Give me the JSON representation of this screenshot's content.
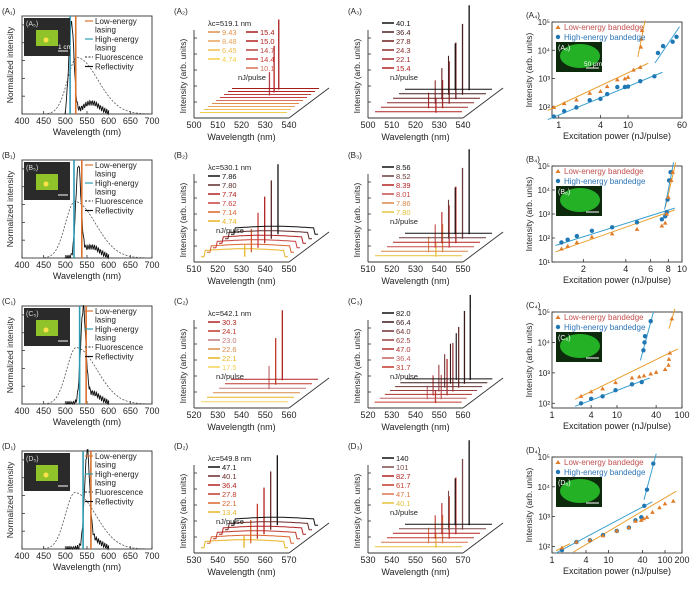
{
  "figure": {
    "rows": [
      "A",
      "B",
      "C",
      "D"
    ],
    "colors": {
      "low_energy": "#d9732e",
      "high_energy": "#2f9cb0",
      "fluorescence": "#555555",
      "reflectivity": "#111111",
      "scatter_low": "#e07b28",
      "scatter_high": "#1f77b4",
      "fit_low": "#e8a030",
      "fit_high": "#3aa0d0",
      "legend_low_text": "#c0504d",
      "legend_high_text": "#2e75b6",
      "inset_green": "#29c92b"
    }
  },
  "chart_data": [
    {
      "panel": "A1",
      "type": "line",
      "label": "(A₁)",
      "inset_label": "(A₅)",
      "scale_bar": "1 cm",
      "xlabel": "Wavelength (nm)",
      "ylabel": "Normalized intensity",
      "xlim": [
        400,
        700
      ],
      "xticks": [
        400,
        450,
        500,
        550,
        600,
        650,
        700
      ],
      "legend": [
        "Low-energy lasing",
        "High-energy lasing",
        "Fluorescence",
        "Reflectivity"
      ],
      "low_energy_lasing": 524,
      "high_energy_lasing": 511,
      "fluorescence_peak": 527,
      "reflectivity_peak": 514
    },
    {
      "panel": "A2",
      "type": "line",
      "label": "(A₂)",
      "lambda_c": "λc=519.1 nm",
      "xlabel": "Wavelength (nm)",
      "ylabel": "Intensity (arb. units)",
      "xlim": [
        500,
        540
      ],
      "xticks": [
        500,
        510,
        520,
        530,
        540
      ],
      "unit": "nJ/pulse",
      "series": [
        {
          "name": "4.74",
          "color": "#f2cf4a",
          "peak": 0
        },
        {
          "name": "6.45",
          "color": "#efbd50",
          "peak": 0
        },
        {
          "name": "8.48",
          "color": "#e9a35a",
          "peak": 0
        },
        {
          "name": "9.43",
          "color": "#e08f4a",
          "peak": 0
        },
        {
          "name": "10.1",
          "color": "#d86f58",
          "peak": 0
        },
        {
          "name": "14.4",
          "color": "#cc3a3a",
          "peak": 0.3
        },
        {
          "name": "14.7",
          "color": "#b84040",
          "peak": 0.35
        },
        {
          "name": "15.0",
          "color": "#b22222",
          "peak": 0.6
        },
        {
          "name": "15.4",
          "color": "#a51c1c",
          "peak": 1.0
        }
      ]
    },
    {
      "panel": "A3",
      "type": "line",
      "label": "(A₃)",
      "xlabel": "Wavelength (nm)",
      "ylabel": "Intensity (arb. units)",
      "xlim": [
        500,
        540
      ],
      "xticks": [
        500,
        510,
        520,
        530,
        540
      ],
      "unit": "nJ/pulse",
      "series": [
        {
          "name": "15.4",
          "color": "#b22222"
        },
        {
          "name": "22.1",
          "color": "#a3282a"
        },
        {
          "name": "24.3",
          "color": "#8b2e2e"
        },
        {
          "name": "27.8",
          "color": "#6e1e1e"
        },
        {
          "name": "36.4",
          "color": "#4a2020"
        },
        {
          "name": "40.1",
          "color": "#111111"
        }
      ]
    },
    {
      "panel": "A4",
      "type": "scatter",
      "label": "(A₄)",
      "inset_label": "(A₆)",
      "scale_bar": "50 μm",
      "xlabel": "Excitation power (nJ/pulse)",
      "ylabel": "Intensity (arb. units)",
      "xscale": "log",
      "yscale": "log",
      "xlim": [
        0.8,
        60
      ],
      "ylim": [
        40,
        100000
      ],
      "xticks": [
        "1",
        "4",
        "10",
        "60"
      ],
      "yticks": [
        "10²",
        "10³",
        "10⁴",
        "10⁵"
      ],
      "legend": [
        "Low-energy bandedge",
        "High-energy bandedge"
      ],
      "low": {
        "x": [
          0.85,
          1.2,
          1.8,
          2.8,
          4,
          5,
          7,
          9,
          10,
          12,
          15,
          15.3,
          15.6,
          15.9
        ],
        "y": [
          95,
          130,
          175,
          300,
          350,
          520,
          900,
          980,
          1100,
          2000,
          2500,
          13000,
          25000,
          50000
        ]
      },
      "high": {
        "x": [
          0.85,
          1.2,
          1.8,
          2.8,
          4,
          5,
          7,
          9,
          10,
          15,
          24,
          27,
          32,
          44,
          50
        ],
        "y": [
          45,
          70,
          95,
          170,
          190,
          280,
          500,
          500,
          520,
          800,
          1200,
          8000,
          14000,
          20000,
          30000
        ]
      }
    },
    {
      "panel": "B1",
      "type": "line",
      "label": "(B₁)",
      "inset_label": "(B₅)",
      "xlabel": "Wavelength (nm)",
      "ylabel": "Normalized intensity",
      "xlim": [
        400,
        700
      ],
      "xticks": [
        400,
        450,
        500,
        550,
        600,
        650,
        700
      ],
      "legend": [
        "Low-energy lasing",
        "High-energy lasing",
        "Fluorescence",
        "Reflectivity"
      ],
      "low_energy_lasing": 538,
      "high_energy_lasing": 520,
      "fluorescence_peak": 522,
      "reflectivity_peak": 530
    },
    {
      "panel": "B2",
      "type": "line",
      "label": "(B₂)",
      "lambda_c": "λc=530.1 nm",
      "xlabel": "Wavelength (nm)",
      "ylabel": "Intensity (arb. units)",
      "xlim": [
        510,
        550
      ],
      "xticks": [
        510,
        520,
        530,
        540,
        550
      ],
      "unit": "nJ/pulse",
      "series": [
        {
          "name": "4.74",
          "color": "#e6b422"
        },
        {
          "name": "7.14",
          "color": "#d9652b"
        },
        {
          "name": "7.62",
          "color": "#c94040"
        },
        {
          "name": "7.74",
          "color": "#b22222"
        },
        {
          "name": "7.80",
          "color": "#5a2a2a"
        },
        {
          "name": "7.86",
          "color": "#111111"
        }
      ]
    },
    {
      "panel": "B3",
      "type": "line",
      "label": "(B₃)",
      "xlabel": "Wavelength (nm)",
      "ylabel": "Intensity (arb. units)",
      "xlim": [
        510,
        550
      ],
      "xticks": [
        510,
        520,
        530,
        540,
        550
      ],
      "unit": "nJ/pulse",
      "series": [
        {
          "name": "7.80",
          "color": "#e6c23a"
        },
        {
          "name": "7.86",
          "color": "#d9894a"
        },
        {
          "name": "8.01",
          "color": "#c74a4a"
        },
        {
          "name": "8.39",
          "color": "#b22222"
        },
        {
          "name": "8.52",
          "color": "#6a3a3a"
        },
        {
          "name": "8.56",
          "color": "#111111"
        }
      ]
    },
    {
      "panel": "B4",
      "type": "scatter",
      "label": "(B₄)",
      "inset_label": "(B₆)",
      "xlabel": "Excitation power (nJ/pulse)",
      "ylabel": "Intensity (arb. units)",
      "xscale": "log",
      "yscale": "log",
      "xlim": [
        1.2,
        10
      ],
      "ylim": [
        10,
        100000
      ],
      "xticks": [
        "2",
        "4",
        "6",
        "8",
        "10"
      ],
      "yticks": [
        "10¹",
        "10²",
        "10³",
        "10⁴",
        "10⁵"
      ],
      "legend": [
        "Low-energy bandedge",
        "High-energy bandedge"
      ],
      "low": {
        "x": [
          1.4,
          1.55,
          1.8,
          2.3,
          3.2,
          4.8,
          7.2,
          7.6,
          7.8,
          8.0,
          8.4,
          8.6
        ],
        "y": [
          35,
          45,
          65,
          110,
          150,
          230,
          320,
          420,
          1000,
          5000,
          25000,
          55000
        ]
      },
      "high": {
        "x": [
          1.4,
          1.55,
          1.8,
          2.3,
          3.2,
          4.8,
          7.2,
          7.6,
          7.8,
          7.9,
          8.1,
          8.3
        ],
        "y": [
          65,
          85,
          120,
          200,
          280,
          450,
          600,
          800,
          1200,
          4000,
          25000,
          55000
        ]
      }
    },
    {
      "panel": "C1",
      "type": "line",
      "label": "(C₁)",
      "inset_label": "(C₅)",
      "xlabel": "Wavelength (nm)",
      "ylabel": "Normalized intensity",
      "xlim": [
        400,
        700
      ],
      "xticks": [
        400,
        450,
        500,
        550,
        600,
        650,
        700
      ],
      "legend": [
        "Low-energy lasing",
        "High-energy lasing",
        "Fluorescence",
        "Reflectivity"
      ],
      "low_energy_lasing": 548,
      "high_energy_lasing": 533,
      "fluorescence_peak": 525,
      "reflectivity_peak": 541
    },
    {
      "panel": "C2",
      "type": "line",
      "label": "(C₂)",
      "lambda_c": "λc=542.1 nm",
      "xlabel": "Wavelength (nm)",
      "ylabel": "Intensity (arb. units)",
      "xlim": [
        520,
        560
      ],
      "xticks": [
        520,
        530,
        540,
        550,
        560
      ],
      "unit": "nJ/pulse",
      "series": [
        {
          "name": "17.5",
          "color": "#f2d35a"
        },
        {
          "name": "22.1",
          "color": "#e6b422"
        },
        {
          "name": "22.6",
          "color": "#d98a4a"
        },
        {
          "name": "23.0",
          "color": "#c47a7a"
        },
        {
          "name": "24.1",
          "color": "#c0392b"
        },
        {
          "name": "30.3",
          "color": "#b22222"
        }
      ]
    },
    {
      "panel": "C3",
      "type": "line",
      "label": "(C₃)",
      "xlabel": "Wavelength (nm)",
      "ylabel": "Intensity (arb. units)",
      "xlim": [
        520,
        560
      ],
      "xticks": [
        520,
        530,
        540,
        550,
        560
      ],
      "unit": "nJ/pulse",
      "series": [
        {
          "name": "31.7",
          "color": "#c0392b"
        },
        {
          "name": "36.4",
          "color": "#c46060"
        },
        {
          "name": "47.0",
          "color": "#b03030"
        },
        {
          "name": "62.5",
          "color": "#9a4040"
        },
        {
          "name": "64.0",
          "color": "#6e3232"
        },
        {
          "name": "66.4",
          "color": "#3a1a1a"
        },
        {
          "name": "82.0",
          "color": "#111111"
        }
      ]
    },
    {
      "panel": "C4",
      "type": "scatter",
      "label": "(C₄)",
      "inset_label": "(C₆)",
      "xlabel": "Excitation power (nJ/pulse)",
      "ylabel": "Intensity (arb. units)",
      "xscale": "log",
      "yscale": "log",
      "xlim": [
        1,
        100
      ],
      "ylim": [
        70,
        100000
      ],
      "xticks": [
        "1",
        "4",
        "10",
        "40",
        "100"
      ],
      "yticks": [
        "10²",
        "10³",
        "10⁴",
        "10⁵"
      ],
      "legend": [
        "Low-energy bandedge",
        "High-energy bandedge"
      ],
      "low": {
        "x": [
          2.8,
          4,
          6,
          9.5,
          17,
          22,
          26,
          33,
          40,
          55,
          62,
          63,
          65,
          70
        ],
        "y": [
          170,
          240,
          300,
          480,
          680,
          740,
          800,
          920,
          1050,
          1300,
          1800,
          2800,
          4500,
          60000
        ]
      },
      "high": {
        "x": [
          2.8,
          4,
          6,
          9.5,
          17,
          24,
          25.5,
          26.5,
          27,
          33
        ],
        "y": [
          100,
          140,
          170,
          270,
          420,
          500,
          5500,
          10000,
          16000,
          50000
        ]
      }
    },
    {
      "panel": "D1",
      "type": "line",
      "label": "(D₁)",
      "inset_label": "(D₅)",
      "xlabel": "Wavelength (nm)",
      "ylabel": "Normalized intensity",
      "xlim": [
        400,
        700
      ],
      "xticks": [
        400,
        450,
        500,
        550,
        600,
        650,
        700
      ],
      "legend": [
        "Low-energy lasing",
        "High-energy lasing",
        "Fluorescence",
        "Reflectivity"
      ],
      "low_energy_lasing": 559,
      "high_energy_lasing": 541,
      "fluorescence_peak": 522,
      "reflectivity_peak": 550
    },
    {
      "panel": "D2",
      "type": "line",
      "label": "(D₂)",
      "lambda_c": "λc=549.8 nm",
      "xlabel": "Wavelength (nm)",
      "ylabel": "Intensity (arb. units)",
      "xlim": [
        530,
        570
      ],
      "xticks": [
        530,
        540,
        550,
        560,
        570
      ],
      "unit": "nJ/pulse",
      "series": [
        {
          "name": "13.4",
          "color": "#e6b422"
        },
        {
          "name": "22.1",
          "color": "#d9652b"
        },
        {
          "name": "27.8",
          "color": "#c0392b"
        },
        {
          "name": "36.4",
          "color": "#b22222"
        },
        {
          "name": "40.1",
          "color": "#6a2a2a"
        },
        {
          "name": "47.1",
          "color": "#111111"
        }
      ]
    },
    {
      "panel": "D3",
      "type": "line",
      "label": "(D₃)",
      "xlabel": "Wavelength (nm)",
      "ylabel": "Intensity (arb. units)",
      "xlim": [
        530,
        570
      ],
      "xticks": [
        530,
        540,
        550,
        560,
        570
      ],
      "unit": "nJ/pulse",
      "series": [
        {
          "name": "40.1",
          "color": "#e6c23a"
        },
        {
          "name": "47.1",
          "color": "#d9774a"
        },
        {
          "name": "61.7",
          "color": "#c0392b"
        },
        {
          "name": "82.7",
          "color": "#b22222"
        },
        {
          "name": "101",
          "color": "#7a4a4a"
        },
        {
          "name": "140",
          "color": "#111111"
        }
      ]
    },
    {
      "panel": "D4",
      "type": "scatter",
      "label": "(D₄)",
      "inset_label": "(D₆)",
      "xlabel": "Excitation power (nJ/pulse)",
      "ylabel": "Intensity (arb. units)",
      "xscale": "log",
      "yscale": "log",
      "xlim": [
        1,
        200
      ],
      "ylim": [
        60,
        100000
      ],
      "xticks": [
        "1",
        "4",
        "10",
        "40",
        "100",
        "200"
      ],
      "yticks": [
        "10²",
        "10³",
        "10⁴",
        "10⁵"
      ],
      "legend": [
        "Low-energy bandedge",
        "High-energy bandedge"
      ],
      "low": {
        "x": [
          1.5,
          2.7,
          4.7,
          8,
          14,
          23,
          30,
          38,
          42,
          48,
          60,
          80,
          100,
          140
        ],
        "y": [
          90,
          140,
          160,
          230,
          330,
          430,
          700,
          750,
          850,
          950,
          1400,
          2000,
          2700,
          3300
        ]
      },
      "high": {
        "x": [
          1.5,
          2.7,
          4.7,
          8,
          14,
          23,
          30,
          38,
          43,
          48,
          62
        ],
        "y": [
          75,
          140,
          160,
          240,
          330,
          430,
          750,
          950,
          2300,
          8000,
          60000
        ]
      }
    }
  ]
}
